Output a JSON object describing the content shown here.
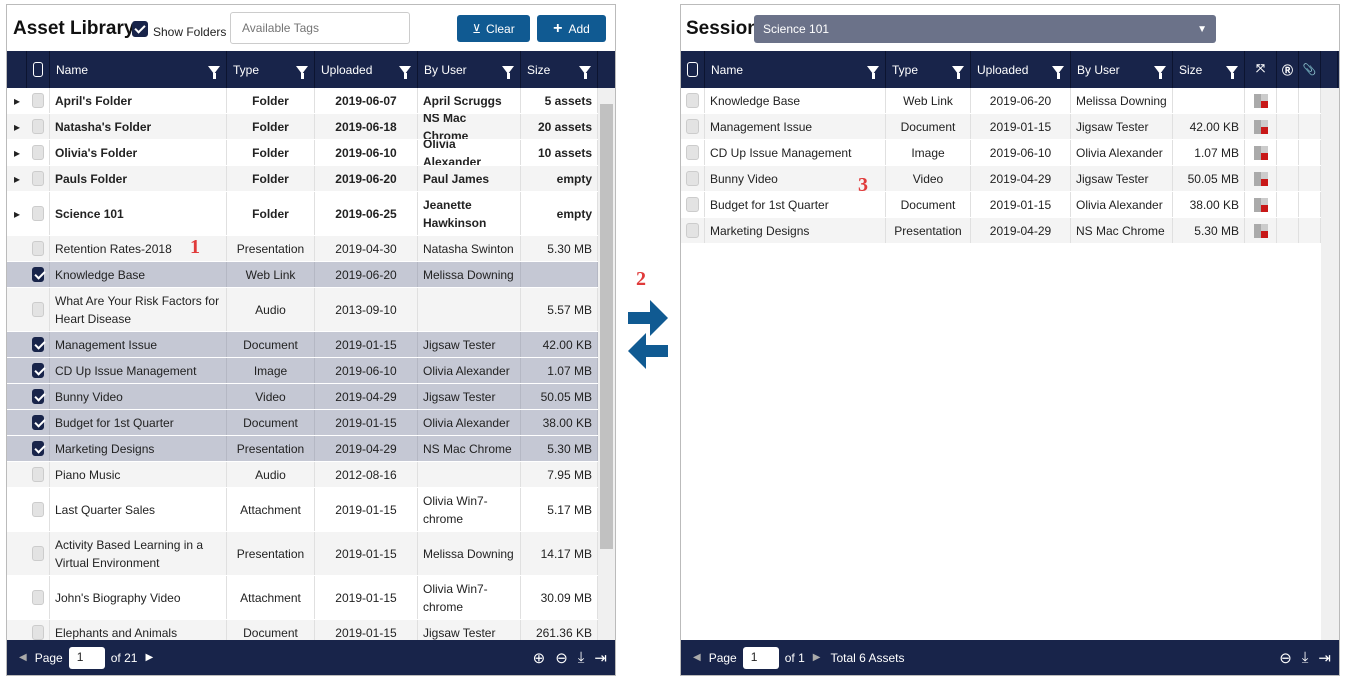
{
  "library": {
    "title": "Asset Library",
    "show_folders_label": "Show Folders",
    "show_folders_checked": true,
    "tags_placeholder": "Available Tags",
    "clear_label": "Clear",
    "add_label": "Add",
    "columns": [
      "Name",
      "Type",
      "Uploaded",
      "By User",
      "Size"
    ],
    "rows": [
      {
        "name": "April's Folder",
        "type": "Folder",
        "uploaded": "2019-06-07",
        "user": "April Scruggs",
        "size": "5 assets",
        "folder": true
      },
      {
        "name": "Natasha's Folder",
        "type": "Folder",
        "uploaded": "2019-06-18",
        "user": "NS Mac Chrome",
        "size": "20 assets",
        "folder": true
      },
      {
        "name": "Olivia's Folder",
        "type": "Folder",
        "uploaded": "2019-06-10",
        "user": "Olivia Alexander",
        "size": "10 assets",
        "folder": true
      },
      {
        "name": "Pauls Folder",
        "type": "Folder",
        "uploaded": "2019-06-20",
        "user": "Paul James",
        "size": "empty",
        "folder": true
      },
      {
        "name": "Science 101",
        "type": "Folder",
        "uploaded": "2019-06-25",
        "user": "Jeanette Hawkinson",
        "size": "empty",
        "folder": true,
        "tall": true
      },
      {
        "name": "Retention Rates-2018",
        "type": "Presentation",
        "uploaded": "2019-04-30",
        "user": "Natasha Swinton",
        "size": "5.30 MB"
      },
      {
        "name": "Knowledge Base",
        "type": "Web Link",
        "uploaded": "2019-06-20",
        "user": "Melissa Downing",
        "size": "",
        "checked": true
      },
      {
        "name": "What Are Your Risk Factors for Heart Disease",
        "type": "Audio",
        "uploaded": "2013-09-10",
        "user": "",
        "size": "5.57 MB",
        "tall": true
      },
      {
        "name": "Management Issue",
        "type": "Document",
        "uploaded": "2019-01-15",
        "user": "Jigsaw Tester",
        "size": "42.00 KB",
        "checked": true
      },
      {
        "name": "CD Up Issue Management",
        "type": "Image",
        "uploaded": "2019-06-10",
        "user": "Olivia Alexander",
        "size": "1.07 MB",
        "checked": true
      },
      {
        "name": "Bunny Video",
        "type": "Video",
        "uploaded": "2019-04-29",
        "user": "Jigsaw Tester",
        "size": "50.05 MB",
        "checked": true
      },
      {
        "name": "Budget for 1st Quarter",
        "type": "Document",
        "uploaded": "2019-01-15",
        "user": "Olivia Alexander",
        "size": "38.00 KB",
        "checked": true
      },
      {
        "name": "Marketing Designs",
        "type": "Presentation",
        "uploaded": "2019-04-29",
        "user": "NS Mac Chrome",
        "size": "5.30 MB",
        "checked": true
      },
      {
        "name": "Piano Music",
        "type": "Audio",
        "uploaded": "2012-08-16",
        "user": "",
        "size": "7.95 MB"
      },
      {
        "name": "Last Quarter Sales",
        "type": "Attachment",
        "uploaded": "2019-01-15",
        "user": "Olivia Win7-chrome",
        "size": "5.17 MB",
        "tall": true
      },
      {
        "name": "Activity Based Learning in a Virtual Environment",
        "type": "Presentation",
        "uploaded": "2019-01-15",
        "user": "Melissa Downing",
        "size": "14.17 MB",
        "tall": true
      },
      {
        "name": "John's Biography Video",
        "type": "Attachment",
        "uploaded": "2019-01-15",
        "user": "Olivia Win7-chrome",
        "size": "30.09 MB",
        "tall": true
      },
      {
        "name": "Elephants and Animals",
        "type": "Document",
        "uploaded": "2019-01-15",
        "user": "Jigsaw Tester",
        "size": "261.36 KB"
      }
    ],
    "footer": {
      "page_label": "Page",
      "page": "1",
      "of_label": "of 21"
    }
  },
  "session": {
    "title": "Session",
    "selected": "Science 101",
    "columns": [
      "Name",
      "Type",
      "Uploaded",
      "By User",
      "Size"
    ],
    "rows": [
      {
        "name": "Knowledge Base",
        "type": "Web Link",
        "uploaded": "2019-06-20",
        "user": "Melissa Downing",
        "size": ""
      },
      {
        "name": "Management Issue",
        "type": "Document",
        "uploaded": "2019-01-15",
        "user": "Jigsaw Tester",
        "size": "42.00 KB"
      },
      {
        "name": "CD Up Issue Management",
        "type": "Image",
        "uploaded": "2019-06-10",
        "user": "Olivia Alexander",
        "size": "1.07 MB"
      },
      {
        "name": "Bunny Video",
        "type": "Video",
        "uploaded": "2019-04-29",
        "user": "Jigsaw Tester",
        "size": "50.05 MB"
      },
      {
        "name": "Budget for 1st Quarter",
        "type": "Document",
        "uploaded": "2019-01-15",
        "user": "Olivia Alexander",
        "size": "38.00 KB"
      },
      {
        "name": "Marketing Designs",
        "type": "Presentation",
        "uploaded": "2019-04-29",
        "user": "NS Mac Chrome",
        "size": "5.30 MB"
      }
    ],
    "footer": {
      "page_label": "Page",
      "page": "1",
      "of_label": "of 1",
      "total": "Total 6 Assets"
    }
  },
  "annotations": [
    "1",
    "2",
    "3"
  ],
  "colors": {
    "header": "#18244a",
    "button": "#105a92",
    "dropdown": "#6b7289",
    "annotation": "#e03a3a"
  }
}
